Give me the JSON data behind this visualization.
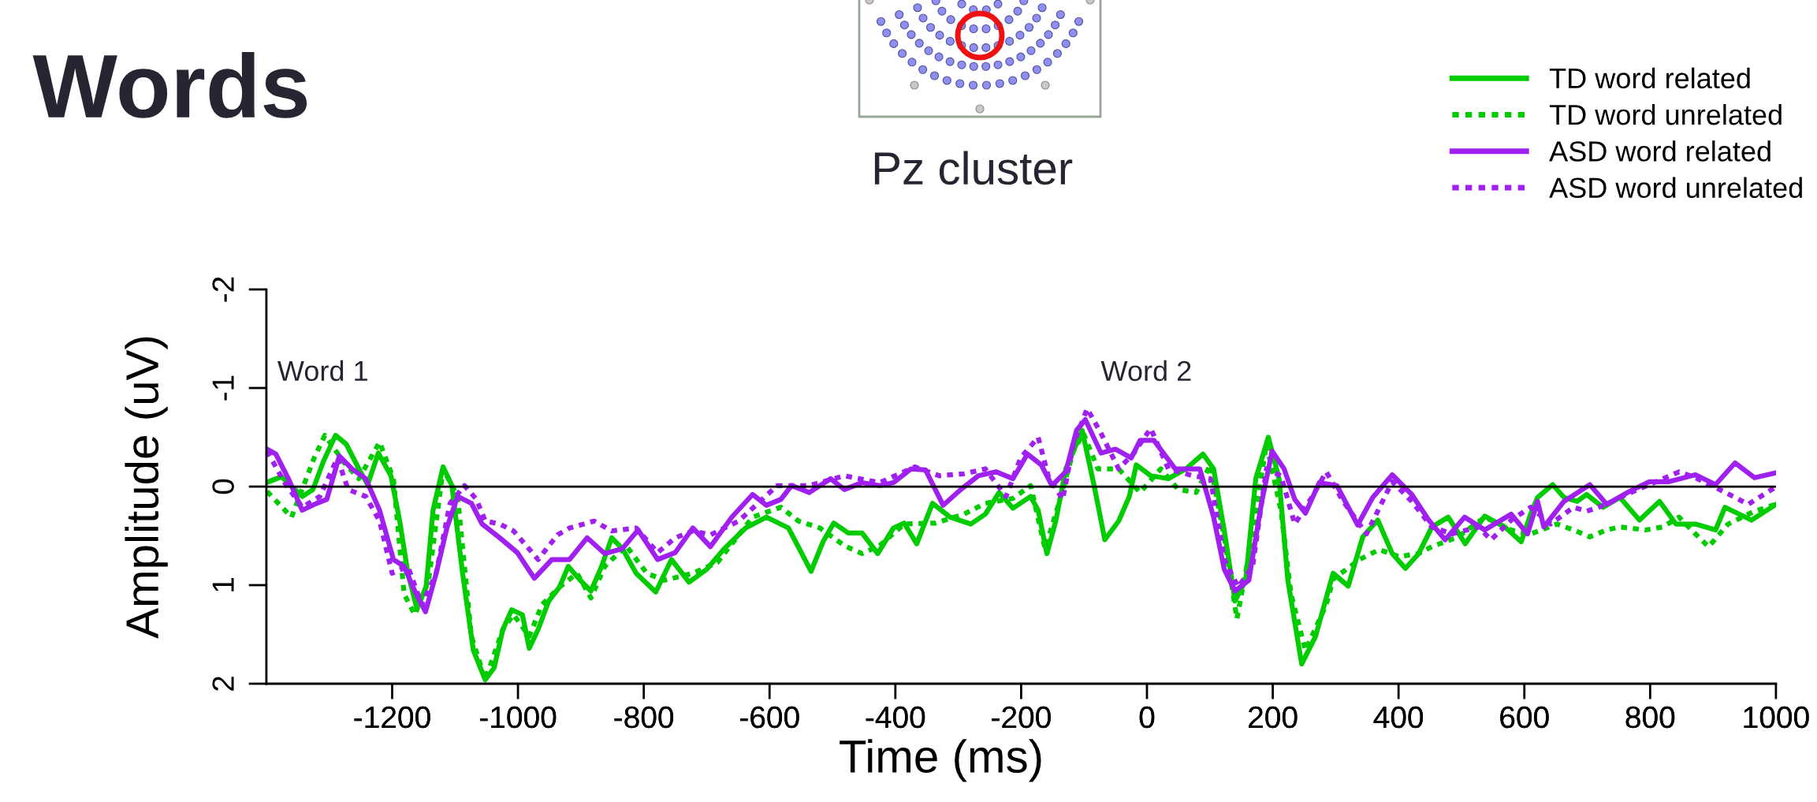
{
  "chart_data": {
    "type": "line",
    "title": "Words",
    "subtitle": "Pz cluster",
    "xlabel": "Time (ms)",
    "ylabel": "Amplitude (uV)",
    "xlim": [
      -1400,
      1000
    ],
    "ylim": [
      2,
      -2
    ],
    "xticks": [
      -1200,
      -1000,
      -800,
      -600,
      -400,
      -200,
      0,
      200,
      400,
      600,
      800,
      1000
    ],
    "ref_lines": [
      {
        "axis": "y",
        "value": 0,
        "color": "#000000"
      }
    ],
    "yticks": [
      -2,
      -1,
      0,
      1,
      2
    ],
    "grid": false,
    "legend": "top right",
    "marker": "none",
    "annotations": [
      "Word 1",
      "Word 2"
    ],
    "series": [
      {
        "name": "TD word related",
        "color": "#00cc00",
        "line_style": "solid",
        "x": [
          -1400,
          -1376,
          -1343,
          -1326,
          -1309,
          -1290,
          -1273,
          -1253,
          -1239,
          -1222,
          -1202,
          -1188,
          -1175,
          -1161,
          -1146,
          -1135,
          -1119,
          -1105,
          -1088,
          -1071,
          -1052,
          -1038,
          -1024,
          -1010,
          -993,
          -982,
          -968,
          -951,
          -934,
          -920,
          -901,
          -884,
          -867,
          -851,
          -834,
          -812,
          -781,
          -756,
          -728,
          -700,
          -672,
          -638,
          -605,
          -570,
          -534,
          -515,
          -498,
          -475,
          -453,
          -428,
          -403,
          -386,
          -366,
          -341,
          -313,
          -280,
          -257,
          -235,
          -213,
          -185,
          -173,
          -159,
          -145,
          -129,
          -103,
          -84,
          -67,
          -45,
          -28,
          -17,
          6,
          34,
          62,
          89,
          106,
          123,
          140,
          157,
          173,
          193,
          210,
          224,
          246,
          268,
          296,
          320,
          343,
          367,
          390,
          411,
          432,
          453,
          479,
          506,
          537,
          569,
          595,
          610,
          621,
          645,
          663,
          684,
          699,
          725,
          752,
          783,
          815,
          841,
          872,
          904,
          919,
          961,
          1000
        ],
        "values": [
          -0.04,
          -0.1,
          0.1,
          0.03,
          -0.26,
          -0.52,
          -0.43,
          -0.18,
          -0.02,
          -0.34,
          -0.11,
          0.35,
          0.88,
          1.23,
          1.02,
          0.24,
          -0.2,
          -0.01,
          0.88,
          1.66,
          1.96,
          1.84,
          1.45,
          1.25,
          1.3,
          1.64,
          1.45,
          1.16,
          1.02,
          0.81,
          0.95,
          1.06,
          0.81,
          0.52,
          0.63,
          0.88,
          1.07,
          0.74,
          0.97,
          0.84,
          0.63,
          0.42,
          0.31,
          0.42,
          0.86,
          0.56,
          0.37,
          0.47,
          0.47,
          0.68,
          0.42,
          0.37,
          0.58,
          0.17,
          0.31,
          0.38,
          0.28,
          0.06,
          0.22,
          0.1,
          0.24,
          0.68,
          0.35,
          -0.18,
          -0.57,
          -0.01,
          0.54,
          0.35,
          0.1,
          -0.22,
          -0.11,
          -0.08,
          -0.18,
          -0.33,
          -0.18,
          0.45,
          1.16,
          0.95,
          -0.08,
          -0.5,
          -0.08,
          0.95,
          1.8,
          1.52,
          0.88,
          1.01,
          0.51,
          0.34,
          0.68,
          0.83,
          0.68,
          0.41,
          0.31,
          0.58,
          0.3,
          0.41,
          0.56,
          0.28,
          0.11,
          -0.02,
          0.11,
          0.15,
          0.08,
          0.21,
          0.11,
          0.34,
          0.15,
          0.38,
          0.38,
          0.44,
          0.21,
          0.34,
          0.18
        ]
      },
      {
        "name": "TD word unrelated",
        "color": "#00cc00",
        "line_style": "dotted",
        "x": [
          -1399,
          -1360,
          -1324,
          -1307,
          -1276,
          -1253,
          -1220,
          -1198,
          -1181,
          -1164,
          -1142,
          -1119,
          -1096,
          -1074,
          -1052,
          -1024,
          -1007,
          -982,
          -962,
          -934,
          -906,
          -884,
          -862,
          -828,
          -795,
          -767,
          -722,
          -683,
          -627,
          -582,
          -554,
          -520,
          -481,
          -453,
          -425,
          -386,
          -336,
          -291,
          -257,
          -213,
          -185,
          -162,
          -140,
          -117,
          -101,
          -78,
          -45,
          -11,
          22,
          50,
          78,
          101,
          123,
          143,
          162,
          190,
          213,
          229,
          252,
          285,
          296,
          338,
          369,
          401,
          432,
          453,
          495,
          537,
          579,
          610,
          652,
          678,
          704,
          731,
          752,
          793,
          820,
          846,
          872,
          893,
          924,
          966,
          1000
        ],
        "values": [
          0.05,
          0.31,
          -0.29,
          -0.52,
          -0.24,
          -0.08,
          -0.45,
          -0.08,
          1.09,
          1.3,
          0.95,
          -0.18,
          0.1,
          1.52,
          1.96,
          1.45,
          1.3,
          1.52,
          1.2,
          1.02,
          0.88,
          1.13,
          0.81,
          0.6,
          0.88,
          0.95,
          0.88,
          0.77,
          0.31,
          0.21,
          0.35,
          0.42,
          0.6,
          0.68,
          0.6,
          0.38,
          0.37,
          0.28,
          0.17,
          0.12,
          -0.01,
          0.63,
          0.17,
          -0.36,
          -0.54,
          -0.18,
          -0.18,
          0.06,
          -0.18,
          0.03,
          0.06,
          -0.22,
          0.52,
          1.34,
          0.7,
          -0.43,
          0.24,
          1.09,
          1.66,
          1.2,
          0.94,
          0.74,
          0.64,
          0.71,
          0.68,
          0.61,
          0.51,
          0.31,
          0.44,
          0.48,
          0.38,
          0.44,
          0.51,
          0.44,
          0.41,
          0.44,
          0.41,
          0.31,
          0.48,
          0.61,
          0.38,
          0.25,
          0.18
        ]
      },
      {
        "name": "ASD word related",
        "color": "#a020f0",
        "line_style": "solid",
        "x": [
          -1399,
          -1385,
          -1365,
          -1343,
          -1320,
          -1304,
          -1284,
          -1264,
          -1242,
          -1220,
          -1198,
          -1181,
          -1164,
          -1147,
          -1130,
          -1113,
          -1096,
          -1074,
          -1057,
          -1029,
          -1001,
          -974,
          -946,
          -918,
          -890,
          -862,
          -834,
          -809,
          -778,
          -750,
          -722,
          -694,
          -660,
          -627,
          -605,
          -582,
          -565,
          -537,
          -503,
          -481,
          -453,
          -425,
          -403,
          -375,
          -352,
          -324,
          -296,
          -268,
          -240,
          -213,
          -190,
          -168,
          -151,
          -129,
          -112,
          -98,
          -73,
          -50,
          -25,
          -11,
          11,
          45,
          84,
          106,
          123,
          140,
          162,
          182,
          199,
          218,
          235,
          252,
          274,
          302,
          335,
          359,
          390,
          421,
          448,
          474,
          505,
          537,
          579,
          605,
          621,
          631,
          663,
          704,
          731,
          767,
          799,
          830,
          872,
          904,
          935,
          966,
          1000
        ],
        "values": [
          -0.38,
          -0.33,
          -0.08,
          0.24,
          0.17,
          0.13,
          -0.31,
          -0.18,
          -0.08,
          0.24,
          0.74,
          0.81,
          1.06,
          1.27,
          0.88,
          0.42,
          0.1,
          0.17,
          0.38,
          0.52,
          0.67,
          0.93,
          0.74,
          0.74,
          0.52,
          0.68,
          0.63,
          0.44,
          0.74,
          0.67,
          0.42,
          0.61,
          0.31,
          0.08,
          0.19,
          0.13,
          -0.01,
          0.06,
          -0.08,
          0.03,
          -0.04,
          -0.01,
          -0.04,
          -0.18,
          -0.17,
          0.19,
          0.03,
          -0.11,
          -0.15,
          -0.08,
          -0.33,
          -0.22,
          -0.01,
          -0.15,
          -0.57,
          -0.68,
          -0.34,
          -0.38,
          -0.29,
          -0.47,
          -0.47,
          -0.18,
          -0.18,
          0.31,
          0.84,
          1.06,
          0.95,
          0.17,
          -0.36,
          -0.18,
          0.13,
          0.27,
          -0.04,
          -0.01,
          0.39,
          0.11,
          -0.12,
          0.08,
          0.34,
          0.54,
          0.31,
          0.44,
          0.28,
          0.48,
          0.15,
          0.41,
          0.15,
          -0.02,
          0.18,
          0.05,
          -0.05,
          -0.05,
          -0.12,
          -0.02,
          -0.24,
          -0.09,
          -0.14
        ]
      },
      {
        "name": "ASD word unrelated",
        "color": "#a020f0",
        "line_style": "dotted",
        "x": [
          -1399,
          -1371,
          -1343,
          -1315,
          -1287,
          -1270,
          -1242,
          -1220,
          -1200,
          -1175,
          -1153,
          -1130,
          -1108,
          -1085,
          -1066,
          -1052,
          -1029,
          -1007,
          -968,
          -937,
          -918,
          -879,
          -851,
          -812,
          -778,
          -750,
          -722,
          -694,
          -649,
          -588,
          -537,
          -481,
          -425,
          -369,
          -330,
          -291,
          -257,
          -224,
          -201,
          -173,
          -157,
          -134,
          -117,
          -95,
          -73,
          -45,
          -22,
          6,
          34,
          73,
          101,
          123,
          145,
          168,
          190,
          213,
          235,
          263,
          285,
          312,
          349,
          390,
          421,
          453,
          485,
          527,
          547,
          579,
          610,
          642,
          678,
          699,
          731,
          762,
          799,
          846,
          872,
          904,
          935,
          956,
          998
        ],
        "values": [
          -0.36,
          -0.04,
          0.21,
          0.1,
          -0.29,
          0.03,
          0.1,
          0.35,
          0.88,
          0.81,
          1.2,
          0.88,
          0.17,
          -0.01,
          0.13,
          0.35,
          0.38,
          0.45,
          0.74,
          0.49,
          0.42,
          0.35,
          0.45,
          0.42,
          0.67,
          0.52,
          0.45,
          0.49,
          0.35,
          -0.01,
          -0.01,
          -0.11,
          -0.04,
          -0.2,
          -0.11,
          -0.13,
          -0.18,
          0.1,
          -0.29,
          -0.5,
          -0.11,
          0.13,
          -0.43,
          -0.79,
          -0.54,
          -0.18,
          -0.33,
          -0.59,
          -0.18,
          -0.11,
          -0.08,
          0.74,
          1.02,
          0.81,
          -0.18,
          -0.11,
          0.38,
          0.1,
          -0.15,
          0.15,
          0.48,
          -0.05,
          0.15,
          0.41,
          0.48,
          0.41,
          0.54,
          0.34,
          0.21,
          0.38,
          0.21,
          0.25,
          0.18,
          0.08,
          -0.02,
          -0.15,
          -0.09,
          0.01,
          0.11,
          0.18,
          0.01
        ]
      }
    ]
  }
}
